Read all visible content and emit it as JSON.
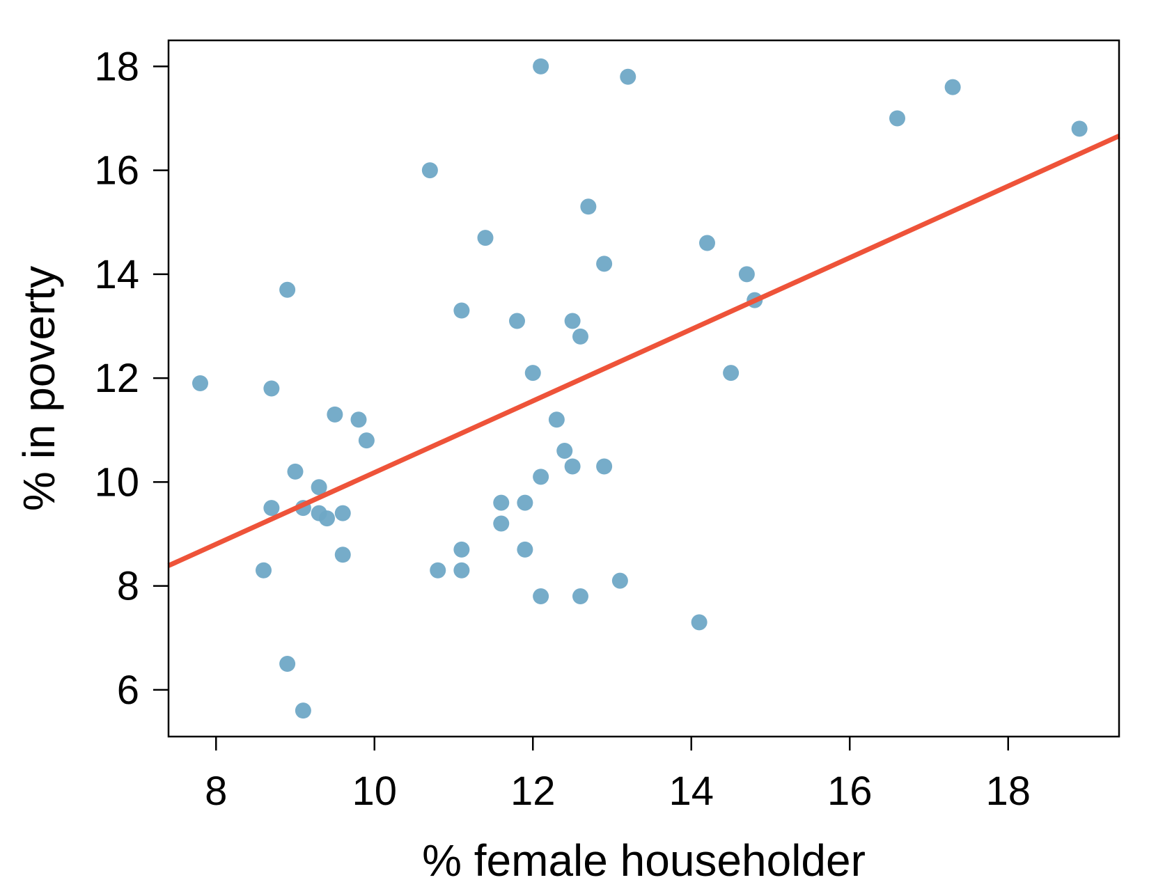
{
  "chart_data": {
    "type": "scatter",
    "title": "",
    "xlabel": "% female householder",
    "ylabel": "% in poverty",
    "xlim": [
      7.4,
      19.4
    ],
    "ylim": [
      5.1,
      18.5
    ],
    "xticks": [
      8,
      10,
      12,
      14,
      16,
      18
    ],
    "yticks": [
      6,
      8,
      10,
      12,
      14,
      16,
      18
    ],
    "grid": false,
    "point_color": "#6FA8C6",
    "line_color": "#EE5339",
    "regression_line": {
      "x": [
        7.4,
        19.4
      ],
      "y": [
        8.39,
        16.66
      ]
    },
    "points": [
      {
        "x": 7.8,
        "y": 11.9
      },
      {
        "x": 8.6,
        "y": 8.3
      },
      {
        "x": 8.7,
        "y": 11.8
      },
      {
        "x": 8.7,
        "y": 9.5
      },
      {
        "x": 8.9,
        "y": 13.7
      },
      {
        "x": 8.9,
        "y": 6.5
      },
      {
        "x": 9.0,
        "y": 10.2
      },
      {
        "x": 9.1,
        "y": 9.5
      },
      {
        "x": 9.1,
        "y": 5.6
      },
      {
        "x": 9.3,
        "y": 9.9
      },
      {
        "x": 9.3,
        "y": 9.4
      },
      {
        "x": 9.4,
        "y": 9.3
      },
      {
        "x": 9.5,
        "y": 11.3
      },
      {
        "x": 9.6,
        "y": 9.4
      },
      {
        "x": 9.6,
        "y": 8.6
      },
      {
        "x": 9.8,
        "y": 11.2
      },
      {
        "x": 9.9,
        "y": 10.8
      },
      {
        "x": 10.7,
        "y": 16.0
      },
      {
        "x": 10.8,
        "y": 8.3
      },
      {
        "x": 11.1,
        "y": 13.3
      },
      {
        "x": 11.1,
        "y": 8.7
      },
      {
        "x": 11.1,
        "y": 8.3
      },
      {
        "x": 11.4,
        "y": 14.7
      },
      {
        "x": 11.6,
        "y": 9.6
      },
      {
        "x": 11.6,
        "y": 9.2
      },
      {
        "x": 11.8,
        "y": 13.1
      },
      {
        "x": 11.9,
        "y": 9.6
      },
      {
        "x": 11.9,
        "y": 8.7
      },
      {
        "x": 12.0,
        "y": 12.1
      },
      {
        "x": 12.1,
        "y": 18.0
      },
      {
        "x": 12.1,
        "y": 10.1
      },
      {
        "x": 12.1,
        "y": 7.8
      },
      {
        "x": 12.3,
        "y": 11.2
      },
      {
        "x": 12.4,
        "y": 10.6
      },
      {
        "x": 12.5,
        "y": 13.1
      },
      {
        "x": 12.5,
        "y": 10.3
      },
      {
        "x": 12.6,
        "y": 12.8
      },
      {
        "x": 12.6,
        "y": 7.8
      },
      {
        "x": 12.7,
        "y": 15.3
      },
      {
        "x": 12.9,
        "y": 14.2
      },
      {
        "x": 12.9,
        "y": 10.3
      },
      {
        "x": 13.1,
        "y": 8.1
      },
      {
        "x": 13.2,
        "y": 17.8
      },
      {
        "x": 14.1,
        "y": 7.3
      },
      {
        "x": 14.2,
        "y": 14.6
      },
      {
        "x": 14.5,
        "y": 12.1
      },
      {
        "x": 14.7,
        "y": 14.0
      },
      {
        "x": 14.8,
        "y": 13.5
      },
      {
        "x": 16.6,
        "y": 17.0
      },
      {
        "x": 17.3,
        "y": 17.6
      },
      {
        "x": 18.9,
        "y": 16.8
      }
    ]
  }
}
